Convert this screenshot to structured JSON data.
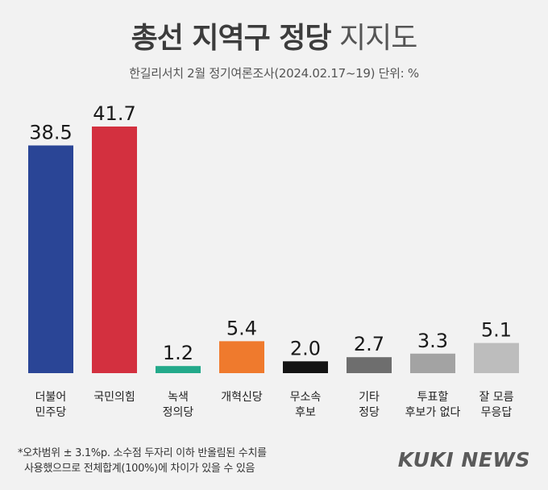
{
  "header": {
    "title_bold": "총선 지역구 정당",
    "title_light": "지지도",
    "subtitle": "한길리서치 2월 정기여론조사(2024.02.17~19) 단위: %"
  },
  "chart_data": {
    "type": "bar",
    "title": "총선 지역구 정당 지지도",
    "subtitle": "한길리서치 2월 정기여론조사(2024.02.17~19) 단위: %",
    "unit": "%",
    "categories": [
      [
        "더불어",
        "민주당"
      ],
      [
        "국민의힘"
      ],
      [
        "녹색",
        "정의당"
      ],
      [
        "개혁신당"
      ],
      [
        "무소속",
        "후보"
      ],
      [
        "기타",
        "정당"
      ],
      [
        "투표할",
        "후보가 없다"
      ],
      [
        "잘 모름",
        "무응답"
      ]
    ],
    "values": [
      38.5,
      41.7,
      1.2,
      5.4,
      2.0,
      2.7,
      3.3,
      5.1
    ],
    "value_labels": [
      "38.5",
      "41.7",
      "1.2",
      "5.4",
      "2.0",
      "2.7",
      "3.3",
      "5.1"
    ],
    "colors": [
      "#2a4596",
      "#d3303f",
      "#23a98a",
      "#ef7a2d",
      "#141414",
      "#6e6e6e",
      "#a3a3a3",
      "#bdbdbd"
    ],
    "ylim": [
      0,
      41.7
    ],
    "grid": false,
    "legend": "none"
  },
  "footnote": {
    "line1": "*오차범위 ± 3.1%p. 소수점 두자리 이하 반올림된 수치를",
    "line2": "사용했으므로 전체합계(100%)에 차이가 있을 수 있음"
  },
  "logo": {
    "text": "KUKI NEWS"
  }
}
